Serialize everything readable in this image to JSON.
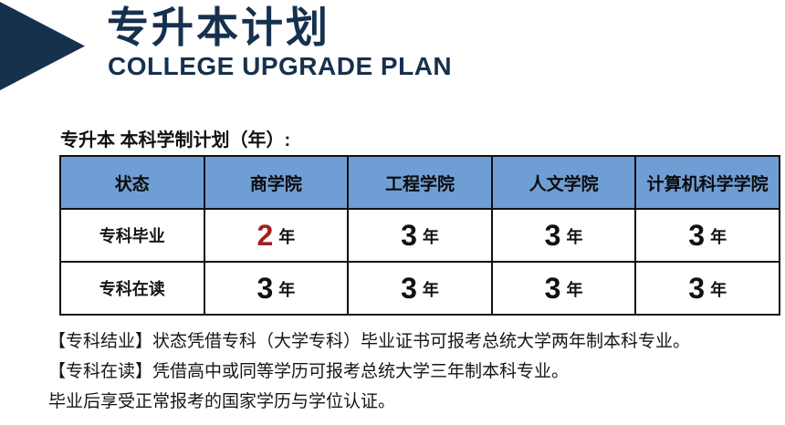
{
  "header": {
    "title": "专升本计划",
    "subtitle": "COLLEGE UPGRADE PLAN",
    "arrow_icon": "right-pointing-triangle"
  },
  "section": {
    "label": "专升本 本科学制计划（年）:"
  },
  "table": {
    "columns": [
      "状态",
      "商学院",
      "工程学院",
      "人文学院",
      "计算机科学学院"
    ],
    "rows": [
      {
        "label": "专科毕业",
        "values": [
          {
            "num": "2",
            "unit": "年",
            "highlight": true
          },
          {
            "num": "3",
            "unit": "年",
            "highlight": false
          },
          {
            "num": "3",
            "unit": "年",
            "highlight": false
          },
          {
            "num": "3",
            "unit": "年",
            "highlight": false
          }
        ]
      },
      {
        "label": "专科在读",
        "values": [
          {
            "num": "3",
            "unit": "年",
            "highlight": false
          },
          {
            "num": "3",
            "unit": "年",
            "highlight": false
          },
          {
            "num": "3",
            "unit": "年",
            "highlight": false
          },
          {
            "num": "3",
            "unit": "年",
            "highlight": false
          }
        ]
      }
    ]
  },
  "notes": [
    "【专科结业】状态凭借专科（大学专科）毕业证书可报考总统大学两年制本科专业。",
    "【专科在读】凭借高中或同等学历可报考总统大学三年制本科专业。",
    "毕业后享受正常报考的国家学历与学位认证。"
  ],
  "colors": {
    "navy": "#16314e",
    "table_header_blue": "#6f9ed5",
    "highlight_red": "#a12222",
    "border": "#111111"
  }
}
